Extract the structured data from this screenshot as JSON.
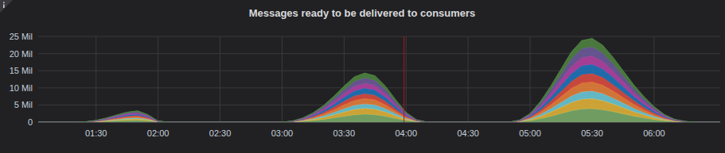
{
  "chart_data": {
    "type": "area",
    "title": "Messages ready to be delivered to consumers",
    "stacked": true,
    "grid": true,
    "x": [
      62,
      80,
      85,
      90,
      95,
      100,
      105,
      110,
      115,
      120,
      125,
      175,
      180,
      185,
      190,
      195,
      200,
      205,
      210,
      215,
      220,
      225,
      230,
      235,
      240,
      245,
      250,
      285,
      290,
      295,
      300,
      305,
      310,
      315,
      320,
      325,
      330,
      335,
      340,
      345,
      350,
      355,
      360,
      365,
      370,
      375,
      380,
      385,
      392
    ],
    "xlim": [
      62,
      392
    ],
    "xticks": [
      {
        "value": 90,
        "label": "01:30"
      },
      {
        "value": 120,
        "label": "02:00"
      },
      {
        "value": 150,
        "label": "02:30"
      },
      {
        "value": 180,
        "label": "03:00"
      },
      {
        "value": 210,
        "label": "03:30"
      },
      {
        "value": 240,
        "label": "04:00"
      },
      {
        "value": 270,
        "label": "04:30"
      },
      {
        "value": 300,
        "label": "05:00"
      },
      {
        "value": 330,
        "label": "05:30"
      },
      {
        "value": 360,
        "label": "06:00"
      }
    ],
    "ylim": [
      0,
      25
    ],
    "yticks": [
      0,
      {
        "value": 5,
        "label": "5 Mil"
      },
      {
        "value": 10,
        "label": "10 Mil"
      },
      {
        "value": 15,
        "label": "15 Mil"
      },
      {
        "value": 20,
        "label": "20 Mil"
      },
      {
        "value": 25,
        "label": "25 Mil"
      }
    ],
    "event_x": 239,
    "series": [
      {
        "color": "#7eb26d",
        "values": [
          0,
          0,
          0.016,
          0.08,
          0.192,
          0.336,
          0.464,
          0.528,
          0.352,
          0.048,
          0,
          0,
          0,
          0.048,
          0.192,
          0.432,
          0.768,
          1.2,
          1.68,
          2.112,
          2.288,
          2.16,
          1.68,
          1.04,
          0.448,
          0.112,
          0,
          0,
          0,
          0.096,
          0.4,
          0.96,
          1.68,
          2.48,
          3.28,
          3.808,
          3.904,
          3.6,
          3.04,
          2.4,
          1.76,
          1.2,
          0.72,
          0.352,
          0.128,
          0.032,
          0,
          0,
          0
        ]
      },
      {
        "color": "#eab839",
        "values": [
          0,
          0,
          0.012,
          0.06,
          0.144,
          0.252,
          0.348,
          0.396,
          0.264,
          0.036,
          0,
          0,
          0,
          0.036,
          0.144,
          0.324,
          0.576,
          0.9,
          1.26,
          1.584,
          1.716,
          1.62,
          1.26,
          0.78,
          0.336,
          0.084,
          0,
          0,
          0,
          0.072,
          0.3,
          0.72,
          1.26,
          1.86,
          2.46,
          2.856,
          2.928,
          2.7,
          2.28,
          1.8,
          1.32,
          0.9,
          0.54,
          0.264,
          0.096,
          0.024,
          0,
          0,
          0
        ]
      },
      {
        "color": "#6ed0e0",
        "values": [
          0,
          0,
          0.009,
          0.045,
          0.108,
          0.189,
          0.261,
          0.297,
          0.198,
          0.027,
          0,
          0,
          0,
          0.027,
          0.108,
          0.243,
          0.432,
          0.675,
          0.945,
          1.188,
          1.287,
          1.215,
          0.945,
          0.585,
          0.252,
          0.063,
          0,
          0,
          0,
          0.054,
          0.225,
          0.54,
          0.945,
          1.395,
          1.845,
          2.142,
          2.196,
          2.025,
          1.71,
          1.35,
          0.99,
          0.675,
          0.405,
          0.198,
          0.072,
          0.018,
          0,
          0,
          0
        ]
      },
      {
        "color": "#ef843c",
        "values": [
          0,
          0,
          0.011,
          0.055,
          0.132,
          0.231,
          0.319,
          0.363,
          0.242,
          0.033,
          0,
          0,
          0,
          0.033,
          0.132,
          0.297,
          0.528,
          0.825,
          1.155,
          1.452,
          1.573,
          1.485,
          1.155,
          0.715,
          0.308,
          0.077,
          0,
          0,
          0,
          0.066,
          0.275,
          0.66,
          1.155,
          1.705,
          2.255,
          2.618,
          2.684,
          2.475,
          2.09,
          1.65,
          1.21,
          0.825,
          0.495,
          0.242,
          0.088,
          0.022,
          0,
          0,
          0
        ]
      },
      {
        "color": "#e24d42",
        "values": [
          0,
          0,
          0.01,
          0.05,
          0.12,
          0.21,
          0.29,
          0.33,
          0.22,
          0.03,
          0,
          0,
          0,
          0.03,
          0.12,
          0.27,
          0.48,
          0.75,
          1.05,
          1.32,
          1.43,
          1.35,
          1.05,
          0.65,
          0.28,
          0.07,
          0,
          0,
          0,
          0.06,
          0.25,
          0.6,
          1.05,
          1.55,
          2.05,
          2.38,
          2.44,
          2.25,
          1.9,
          1.5,
          1.1,
          0.75,
          0.45,
          0.22,
          0.08,
          0.02,
          0,
          0,
          0
        ]
      },
      {
        "color": "#1f78c1",
        "values": [
          0,
          0,
          0.011,
          0.055,
          0.132,
          0.231,
          0.319,
          0.363,
          0.242,
          0.033,
          0,
          0,
          0,
          0.033,
          0.132,
          0.297,
          0.528,
          0.825,
          1.155,
          1.452,
          1.573,
          1.485,
          1.155,
          0.715,
          0.308,
          0.077,
          0,
          0,
          0,
          0.066,
          0.275,
          0.66,
          1.155,
          1.705,
          2.255,
          2.618,
          2.684,
          2.475,
          2.09,
          1.65,
          1.21,
          0.825,
          0.495,
          0.242,
          0.088,
          0.022,
          0,
          0,
          0
        ]
      },
      {
        "color": "#ba43a9",
        "values": [
          0,
          0,
          0.01,
          0.05,
          0.12,
          0.21,
          0.29,
          0.33,
          0.22,
          0.03,
          0,
          0,
          0,
          0.03,
          0.12,
          0.27,
          0.48,
          0.75,
          1.05,
          1.32,
          1.43,
          1.35,
          1.05,
          0.65,
          0.28,
          0.07,
          0,
          0,
          0,
          0.06,
          0.25,
          0.6,
          1.05,
          1.55,
          2.05,
          2.38,
          2.44,
          2.25,
          1.9,
          1.5,
          1.1,
          0.75,
          0.45,
          0.22,
          0.08,
          0.02,
          0,
          0,
          0
        ]
      },
      {
        "color": "#705da0",
        "values": [
          0,
          0,
          0.011,
          0.055,
          0.132,
          0.231,
          0.319,
          0.363,
          0.242,
          0.033,
          0,
          0,
          0,
          0.033,
          0.132,
          0.297,
          0.528,
          0.825,
          1.155,
          1.452,
          1.573,
          1.485,
          1.155,
          0.715,
          0.308,
          0.077,
          0,
          0,
          0,
          0.066,
          0.275,
          0.66,
          1.155,
          1.705,
          2.255,
          2.618,
          2.684,
          2.475,
          2.09,
          1.65,
          1.21,
          0.825,
          0.495,
          0.242,
          0.088,
          0.022,
          0,
          0,
          0
        ]
      },
      {
        "color": "#508642",
        "values": [
          0,
          0,
          0.01,
          0.05,
          0.12,
          0.21,
          0.29,
          0.33,
          0.22,
          0.03,
          0,
          0,
          0,
          0.03,
          0.12,
          0.27,
          0.48,
          0.75,
          1.05,
          1.32,
          1.43,
          1.35,
          1.05,
          0.65,
          0.28,
          0.07,
          0,
          0,
          0,
          0.06,
          0.25,
          0.6,
          1.05,
          1.55,
          2.05,
          2.38,
          2.44,
          2.25,
          1.9,
          1.5,
          1.1,
          0.75,
          0.45,
          0.22,
          0.08,
          0.02,
          0,
          0,
          0
        ]
      }
    ]
  }
}
